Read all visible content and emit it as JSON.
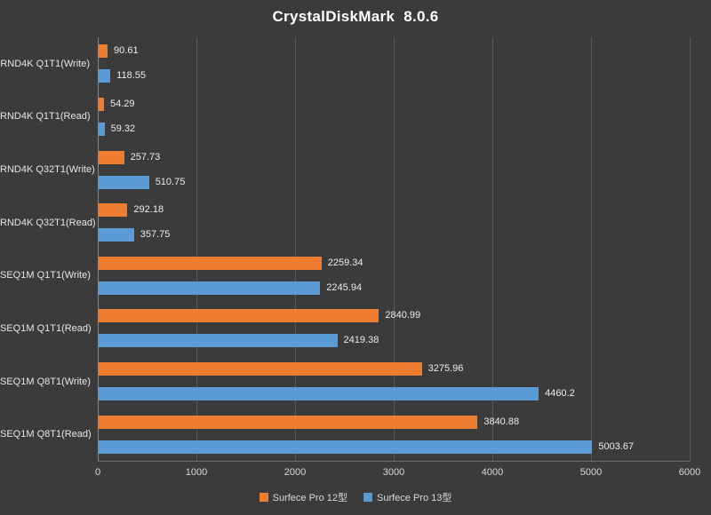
{
  "title": "CrystalDiskMark  8.0.6",
  "chart_data": {
    "type": "bar",
    "orientation": "horizontal",
    "title": "CrystalDiskMark  8.0.6",
    "categories": [
      "RND4K Q1T1(Write)",
      "RND4K Q1T1(Read)",
      "RND4K Q32T1(Write)",
      "RND4K Q32T1(Read)",
      "SEQ1M Q1T1(Write)",
      "SEQ1M Q1T1(Read)",
      "SEQ1M Q8T1(Write)",
      "SEQ1M Q8T1(Read)"
    ],
    "series": [
      {
        "name": "Surfece Pro 12型",
        "color": "#ED7D31",
        "values": [
          90.61,
          54.29,
          257.73,
          292.18,
          2259.34,
          2840.99,
          3275.96,
          3840.88
        ]
      },
      {
        "name": "Surfece Pro 13型",
        "color": "#5B9BD5",
        "values": [
          118.55,
          59.32,
          510.75,
          357.75,
          2245.94,
          2419.38,
          4460.2,
          5003.67
        ]
      }
    ],
    "x_ticks": [
      0,
      1000,
      2000,
      3000,
      4000,
      5000,
      6000
    ],
    "xlim": [
      0,
      6000
    ],
    "grid": true,
    "legend_position": "bottom",
    "colors": {
      "background": "#3B3B3B",
      "gridline": "#575757",
      "axis": "#8A8A8A",
      "text": "#E6E6E6",
      "title": "#FFFFFF"
    }
  }
}
